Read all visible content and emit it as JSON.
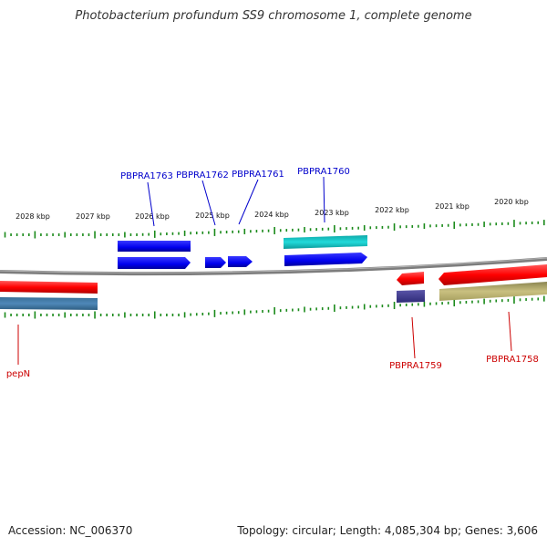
{
  "title": "Photobacterium profundum SS9 chromosome 1, complete genome",
  "footer": {
    "accession": "Accession: NC_006370",
    "topology": "Topology: circular; Length: 4,085,304 bp; Genes: 3,606"
  },
  "colors": {
    "forward_label": "#0000cc",
    "reverse_label": "#cc0000",
    "tick": "#1a8a1a",
    "backbone": "#808080"
  },
  "kbp_ticks": [
    "2028 kbp",
    "2027 kbp",
    "2026 kbp",
    "2025 kbp",
    "2024 kbp",
    "2023 kbp",
    "2022 kbp",
    "2021 kbp",
    "2020 kbp"
  ],
  "genes_forward": [
    {
      "name": "PBPRA1763"
    },
    {
      "name": "PBPRA1762"
    },
    {
      "name": "PBPRA1761"
    },
    {
      "name": "PBPRA1760"
    }
  ],
  "genes_reverse": [
    {
      "name": "pepN"
    },
    {
      "name": "PBPRA1759"
    },
    {
      "name": "PBPRA1758"
    }
  ]
}
